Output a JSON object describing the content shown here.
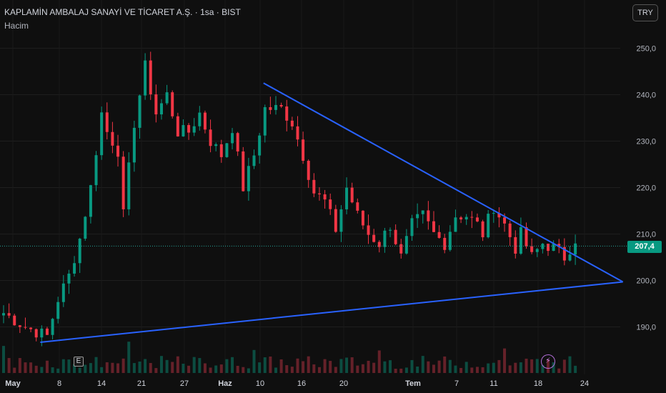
{
  "header": {
    "title": "KAPLAMİN AMBALAJ SANAYİ VE TİCARET A.Ş. · 1sa · BIST",
    "volume_label": "Hacim",
    "currency_button": "TRY"
  },
  "markers": {
    "earnings_label": "E",
    "event_icon": "lightning-icon"
  },
  "colors": {
    "up": "#089981",
    "down": "#f23645",
    "trendline": "#2962ff",
    "background": "#0f0f0f",
    "last_price_line": "#26a69a"
  },
  "chart_data": {
    "type": "candlestick",
    "y_axis": {
      "ticks": [
        "190,0",
        "200,0",
        "210,0",
        "220,0",
        "230,0",
        "240,0",
        "250,0"
      ],
      "range": [
        184,
        256
      ]
    },
    "x_axis": {
      "ticks": [
        "May",
        "8",
        "14",
        "21",
        "27",
        "Haz",
        "10",
        "16",
        "20",
        "Tem",
        "7",
        "11",
        "18",
        "24"
      ]
    },
    "last_price": {
      "value": 207.4,
      "label": "207,4"
    },
    "path_points": [
      [
        0,
        193
      ],
      [
        4,
        190
      ],
      [
        8,
        188
      ],
      [
        10,
        196
      ],
      [
        12,
        201
      ],
      [
        14,
        209
      ],
      [
        16,
        220
      ],
      [
        18,
        236
      ],
      [
        19,
        232
      ],
      [
        21,
        228
      ],
      [
        22,
        214
      ],
      [
        24,
        234
      ],
      [
        26,
        246
      ],
      [
        28,
        236
      ],
      [
        30,
        240
      ],
      [
        32,
        232
      ],
      [
        34,
        232
      ],
      [
        36,
        236
      ],
      [
        38,
        230
      ],
      [
        40,
        227
      ],
      [
        42,
        233
      ],
      [
        44,
        220
      ],
      [
        46,
        227
      ],
      [
        48,
        237
      ],
      [
        51,
        237
      ],
      [
        53,
        234
      ],
      [
        55,
        227
      ],
      [
        57,
        219
      ],
      [
        59,
        217
      ],
      [
        61,
        211
      ],
      [
        63,
        220
      ],
      [
        65,
        214
      ],
      [
        67,
        210
      ],
      [
        69,
        208
      ],
      [
        71,
        212
      ],
      [
        73,
        205
      ],
      [
        75,
        212
      ],
      [
        77,
        214
      ],
      [
        79,
        210
      ],
      [
        81,
        208
      ],
      [
        83,
        214
      ],
      [
        85,
        214
      ],
      [
        87,
        212
      ],
      [
        88,
        210
      ],
      [
        90,
        216
      ],
      [
        92,
        212
      ],
      [
        94,
        207
      ],
      [
        95,
        210
      ],
      [
        97,
        205
      ],
      [
        99,
        208
      ],
      [
        101,
        207
      ],
      [
        103,
        205
      ],
      [
        105,
        209
      ]
    ],
    "trendlines": [
      {
        "name": "upper",
        "from": [
          48,
          242.5
        ],
        "to": [
          114,
          199.7
        ]
      },
      {
        "name": "lower",
        "from": [
          7,
          186.7
        ],
        "to": [
          114,
          199.7
        ]
      }
    ]
  }
}
